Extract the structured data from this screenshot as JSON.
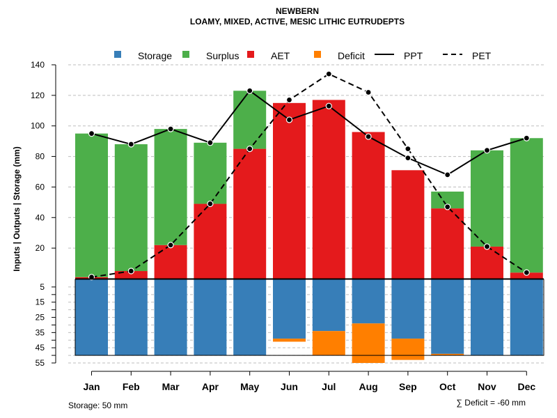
{
  "chart_data": {
    "type": "bar",
    "title": "NEWBERN",
    "subtitle": "LOAMY, MIXED, ACTIVE, MESIC LITHIC EUTRUDEPTS",
    "ylabel": "Inputs | Outputs | Storage    (mm)",
    "categories": [
      "Jan",
      "Feb",
      "Mar",
      "Apr",
      "May",
      "Jun",
      "Jul",
      "Aug",
      "Sep",
      "Oct",
      "Nov",
      "Dec"
    ],
    "upper_ylim": [
      0,
      140
    ],
    "upper_ticks": [
      20,
      40,
      60,
      80,
      100,
      120,
      140
    ],
    "lower_ylim": [
      0,
      55
    ],
    "lower_ticks": [
      5,
      15,
      25,
      35,
      45,
      55
    ],
    "series": [
      {
        "name": "AET",
        "color": "#E41A1C",
        "values": [
          1,
          5,
          22,
          49,
          85,
          115,
          117,
          96,
          71,
          46,
          21,
          4
        ]
      },
      {
        "name": "Surplus",
        "color": "#4DAF4A",
        "values": [
          94,
          83,
          76,
          40,
          38,
          0,
          0,
          0,
          0,
          11,
          63,
          88
        ]
      },
      {
        "name": "Storage",
        "color": "#377EB8",
        "values": [
          50,
          50,
          50,
          50,
          50,
          39,
          34,
          29,
          39,
          49,
          50,
          50
        ]
      },
      {
        "name": "Deficit",
        "color": "#FF7F00",
        "values": [
          0,
          0,
          0,
          0,
          0,
          2,
          16,
          26,
          14,
          1,
          0,
          0
        ]
      },
      {
        "name": "PPT",
        "color": "#000000",
        "line": "solid",
        "values": [
          95,
          88,
          98,
          89,
          123,
          104,
          113,
          93,
          79,
          68,
          84,
          92
        ]
      },
      {
        "name": "PET",
        "color": "#000000",
        "line": "dashed",
        "values": [
          1,
          5,
          22,
          49,
          85,
          117,
          134,
          122,
          85,
          47,
          21,
          4
        ]
      }
    ],
    "legend": {
      "position": "top",
      "entries": [
        {
          "label": "Storage",
          "color": "#377EB8",
          "kind": "box"
        },
        {
          "label": "Surplus",
          "color": "#4DAF4A",
          "kind": "box"
        },
        {
          "label": "AET",
          "color": "#E41A1C",
          "kind": "box"
        },
        {
          "label": "Deficit",
          "color": "#FF7F00",
          "kind": "box"
        },
        {
          "label": "PPT",
          "color": "#000000",
          "kind": "solid"
        },
        {
          "label": "PET",
          "color": "#000000",
          "kind": "dashed"
        }
      ]
    },
    "storage_note": "Storage: 50 mm",
    "deficit_note": "∑ Deficit = -60 mm",
    "grid": true
  }
}
